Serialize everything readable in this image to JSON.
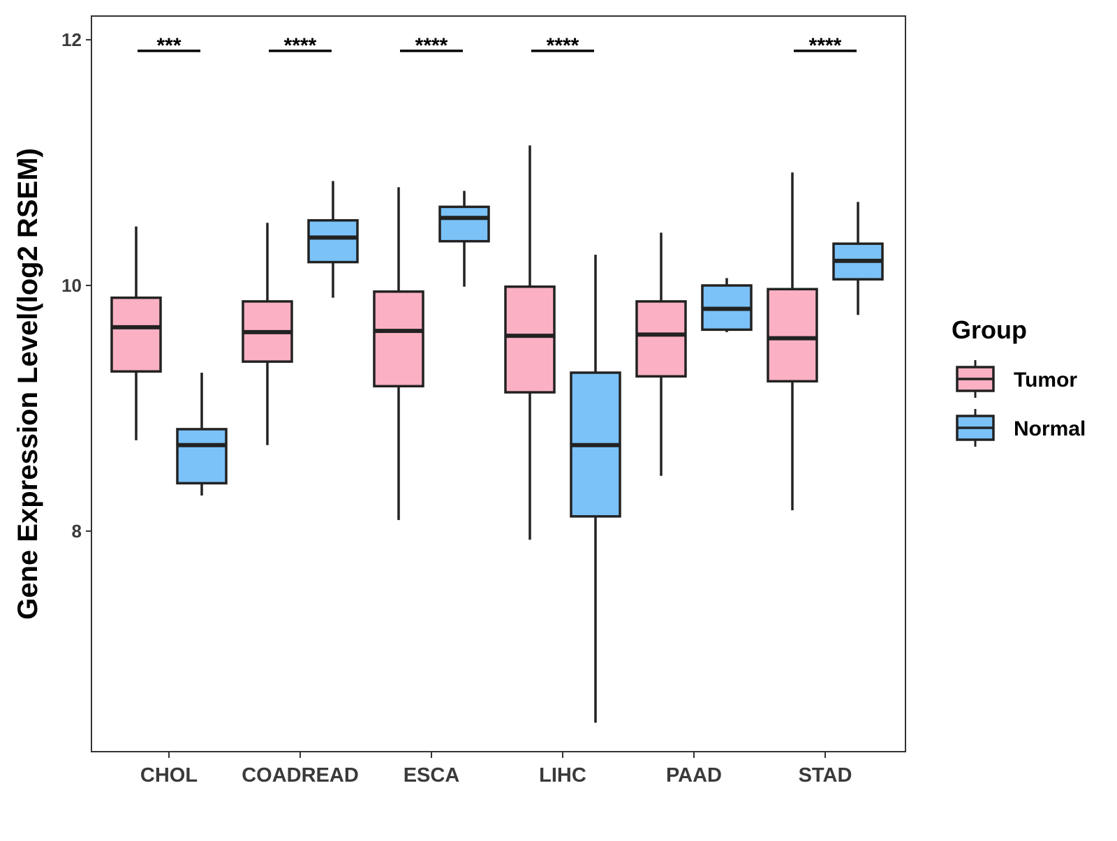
{
  "chart_data": {
    "type": "box",
    "ylabel": "Gene Expression Level(log2 RSEM)",
    "xlabel": "",
    "ylim": [
      6.2,
      12.2
    ],
    "yticks": [
      8,
      10,
      12
    ],
    "categories": [
      "CHOL",
      "COADREAD",
      "ESCA",
      "LIHC",
      "PAAD",
      "STAD"
    ],
    "legend": {
      "title": "Group",
      "position": "right",
      "entries": [
        {
          "name": "Tumor",
          "color": "#fbb1c3"
        },
        {
          "name": "Normal",
          "color": "#7bc2f8"
        }
      ]
    },
    "series": [
      {
        "name": "Tumor",
        "color": "#fbb1c3",
        "boxes": [
          {
            "category": "CHOL",
            "whislo": 8.74,
            "q1": 9.3,
            "med": 9.66,
            "q3": 9.9,
            "whishi": 10.48
          },
          {
            "category": "COADREAD",
            "whislo": 8.7,
            "q1": 9.38,
            "med": 9.62,
            "q3": 9.87,
            "whishi": 10.51
          },
          {
            "category": "ESCA",
            "whislo": 8.09,
            "q1": 9.18,
            "med": 9.63,
            "q3": 9.95,
            "whishi": 10.8
          },
          {
            "category": "LIHC",
            "whislo": 7.93,
            "q1": 9.13,
            "med": 9.59,
            "q3": 9.99,
            "whishi": 11.14
          },
          {
            "category": "PAAD",
            "whislo": 8.45,
            "q1": 9.26,
            "med": 9.6,
            "q3": 9.87,
            "whishi": 10.43
          },
          {
            "category": "STAD",
            "whislo": 8.17,
            "q1": 9.22,
            "med": 9.57,
            "q3": 9.97,
            "whishi": 10.92
          }
        ]
      },
      {
        "name": "Normal",
        "color": "#7bc2f8",
        "boxes": [
          {
            "category": "CHOL",
            "whislo": 8.29,
            "q1": 8.39,
            "med": 8.7,
            "q3": 8.83,
            "whishi": 9.29
          },
          {
            "category": "COADREAD",
            "whislo": 9.9,
            "q1": 10.19,
            "med": 10.39,
            "q3": 10.53,
            "whishi": 10.85
          },
          {
            "category": "ESCA",
            "whislo": 9.99,
            "q1": 10.36,
            "med": 10.55,
            "q3": 10.64,
            "whishi": 10.77
          },
          {
            "category": "LIHC",
            "whislo": 6.44,
            "q1": 8.12,
            "med": 8.7,
            "q3": 9.29,
            "whishi": 10.25
          },
          {
            "category": "PAAD",
            "whislo": 9.62,
            "q1": 9.64,
            "med": 9.81,
            "q3": 10.0,
            "whishi": 10.06
          },
          {
            "category": "STAD",
            "whislo": 9.76,
            "q1": 10.05,
            "med": 10.2,
            "q3": 10.34,
            "whishi": 10.68
          }
        ]
      }
    ],
    "significance": [
      {
        "category": "CHOL",
        "label": "***"
      },
      {
        "category": "COADREAD",
        "label": "****"
      },
      {
        "category": "ESCA",
        "label": "****"
      },
      {
        "category": "LIHC",
        "label": "****"
      },
      {
        "category": "STAD",
        "label": "****"
      }
    ],
    "significance_y": 11.91
  }
}
